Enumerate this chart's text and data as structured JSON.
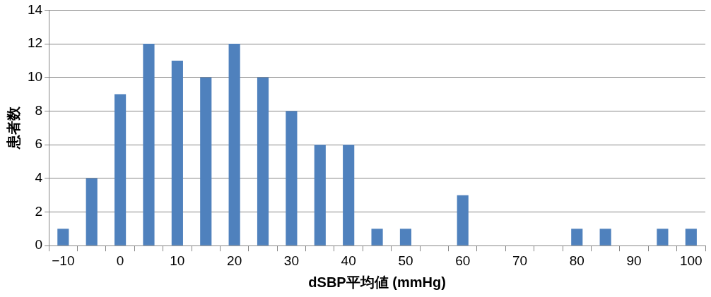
{
  "chart_data": {
    "type": "bar",
    "xlabel": "dSBP平均値 (mmHg)",
    "ylabel": "患者数",
    "categories": [
      "−10",
      null,
      "0",
      null,
      "10",
      null,
      "20",
      null,
      "30",
      null,
      "40",
      null,
      "50",
      null,
      "60",
      null,
      "70",
      null,
      "80",
      null,
      "90",
      null,
      "100"
    ],
    "values": [
      1,
      4,
      9,
      12,
      11,
      10,
      12,
      10,
      8,
      6,
      6,
      1,
      1,
      0,
      3,
      0,
      0,
      0,
      1,
      1,
      0,
      1,
      1
    ],
    "color": "#4f81bd",
    "ylim": [
      0,
      14
    ],
    "yticks": [
      0,
      2,
      4,
      6,
      8,
      10,
      12,
      14
    ],
    "grid": "y",
    "legend": false
  }
}
